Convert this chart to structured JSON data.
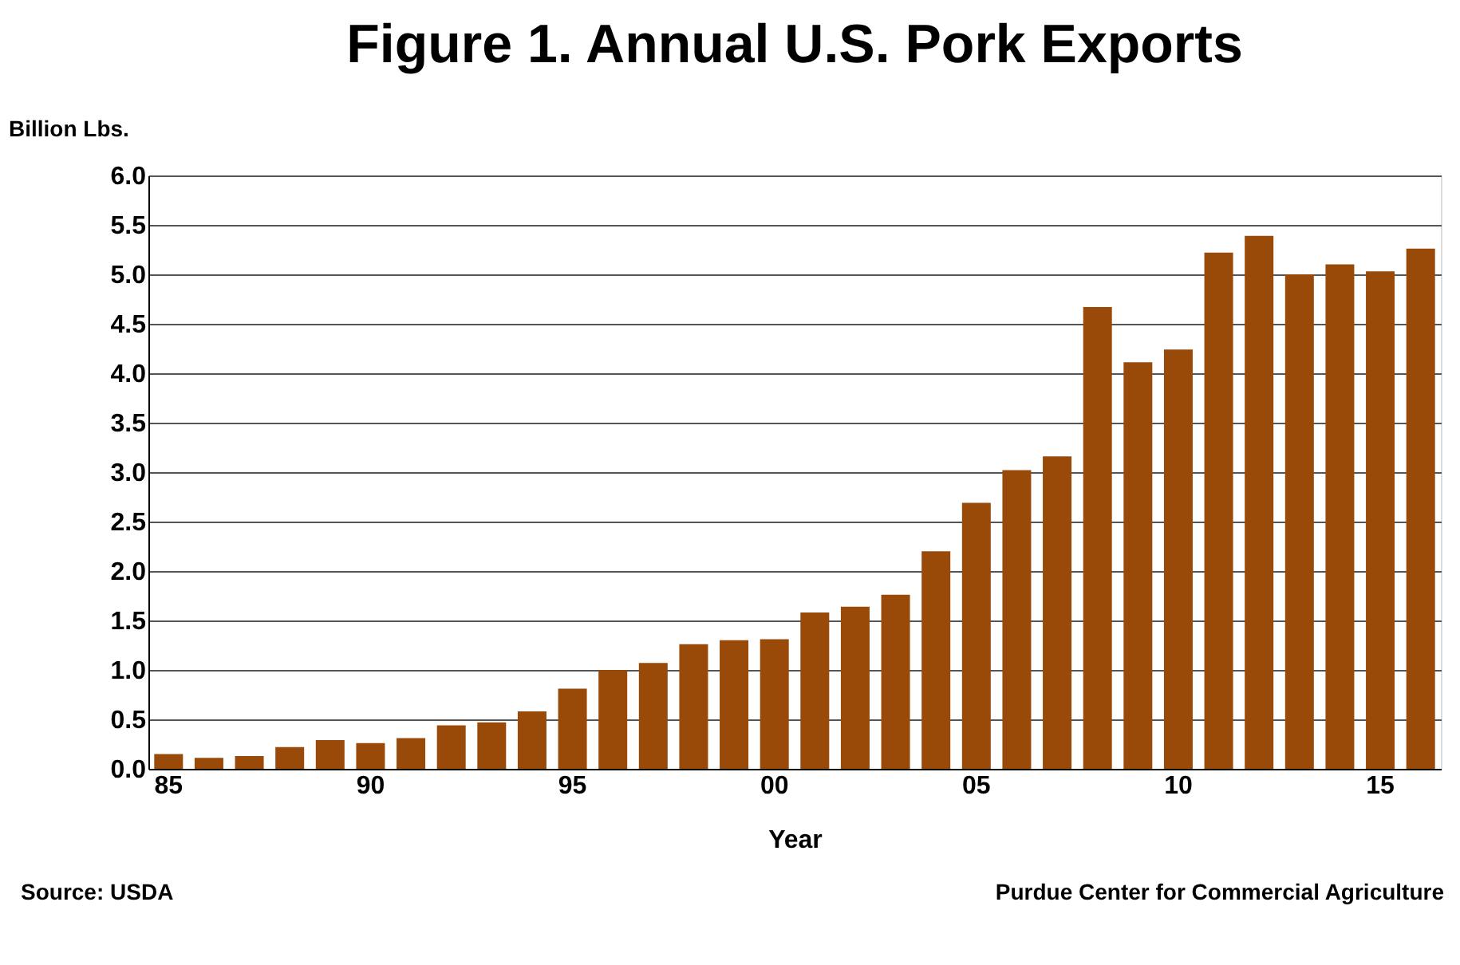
{
  "chart_data": {
    "type": "bar",
    "title": "Figure 1. Annual U.S. Pork Exports",
    "xlabel": "Year",
    "ylabel": "Billion Lbs.",
    "categories": [
      "85",
      null,
      null,
      null,
      null,
      "90",
      null,
      null,
      null,
      null,
      "95",
      null,
      null,
      null,
      null,
      "00",
      null,
      null,
      null,
      null,
      "05",
      null,
      null,
      null,
      null,
      "10",
      null,
      null,
      null,
      null,
      "15",
      null
    ],
    "values": [
      0.15,
      0.11,
      0.13,
      0.22,
      0.29,
      0.26,
      0.31,
      0.44,
      0.47,
      0.58,
      0.81,
      1.0,
      1.07,
      1.26,
      1.3,
      1.31,
      1.58,
      1.64,
      1.76,
      2.2,
      2.69,
      3.02,
      3.16,
      4.67,
      4.11,
      4.24,
      5.22,
      5.39,
      5.0,
      5.1,
      5.03,
      5.26
    ],
    "color": "#9a4a08",
    "ylim": [
      0,
      6
    ],
    "yticks": [
      {
        "value": 0,
        "label": "0.0"
      },
      {
        "value": 0.5,
        "label": "0.5"
      },
      {
        "value": 1,
        "label": "1.0"
      },
      {
        "value": 1.5,
        "label": "1.5"
      },
      {
        "value": 2,
        "label": "2.0"
      },
      {
        "value": 2.5,
        "label": "2.5"
      },
      {
        "value": 3,
        "label": "3.0"
      },
      {
        "value": 3.5,
        "label": "3.5"
      },
      {
        "value": 4,
        "label": "4.0"
      },
      {
        "value": 4.5,
        "label": "4.5"
      },
      {
        "value": 5,
        "label": "5.0"
      },
      {
        "value": 5.5,
        "label": "5.5"
      },
      {
        "value": 6,
        "label": "6.0"
      }
    ],
    "grid": "y",
    "annotations": [
      "Source: USDA",
      "Purdue Center for Commercial Agriculture"
    ]
  }
}
